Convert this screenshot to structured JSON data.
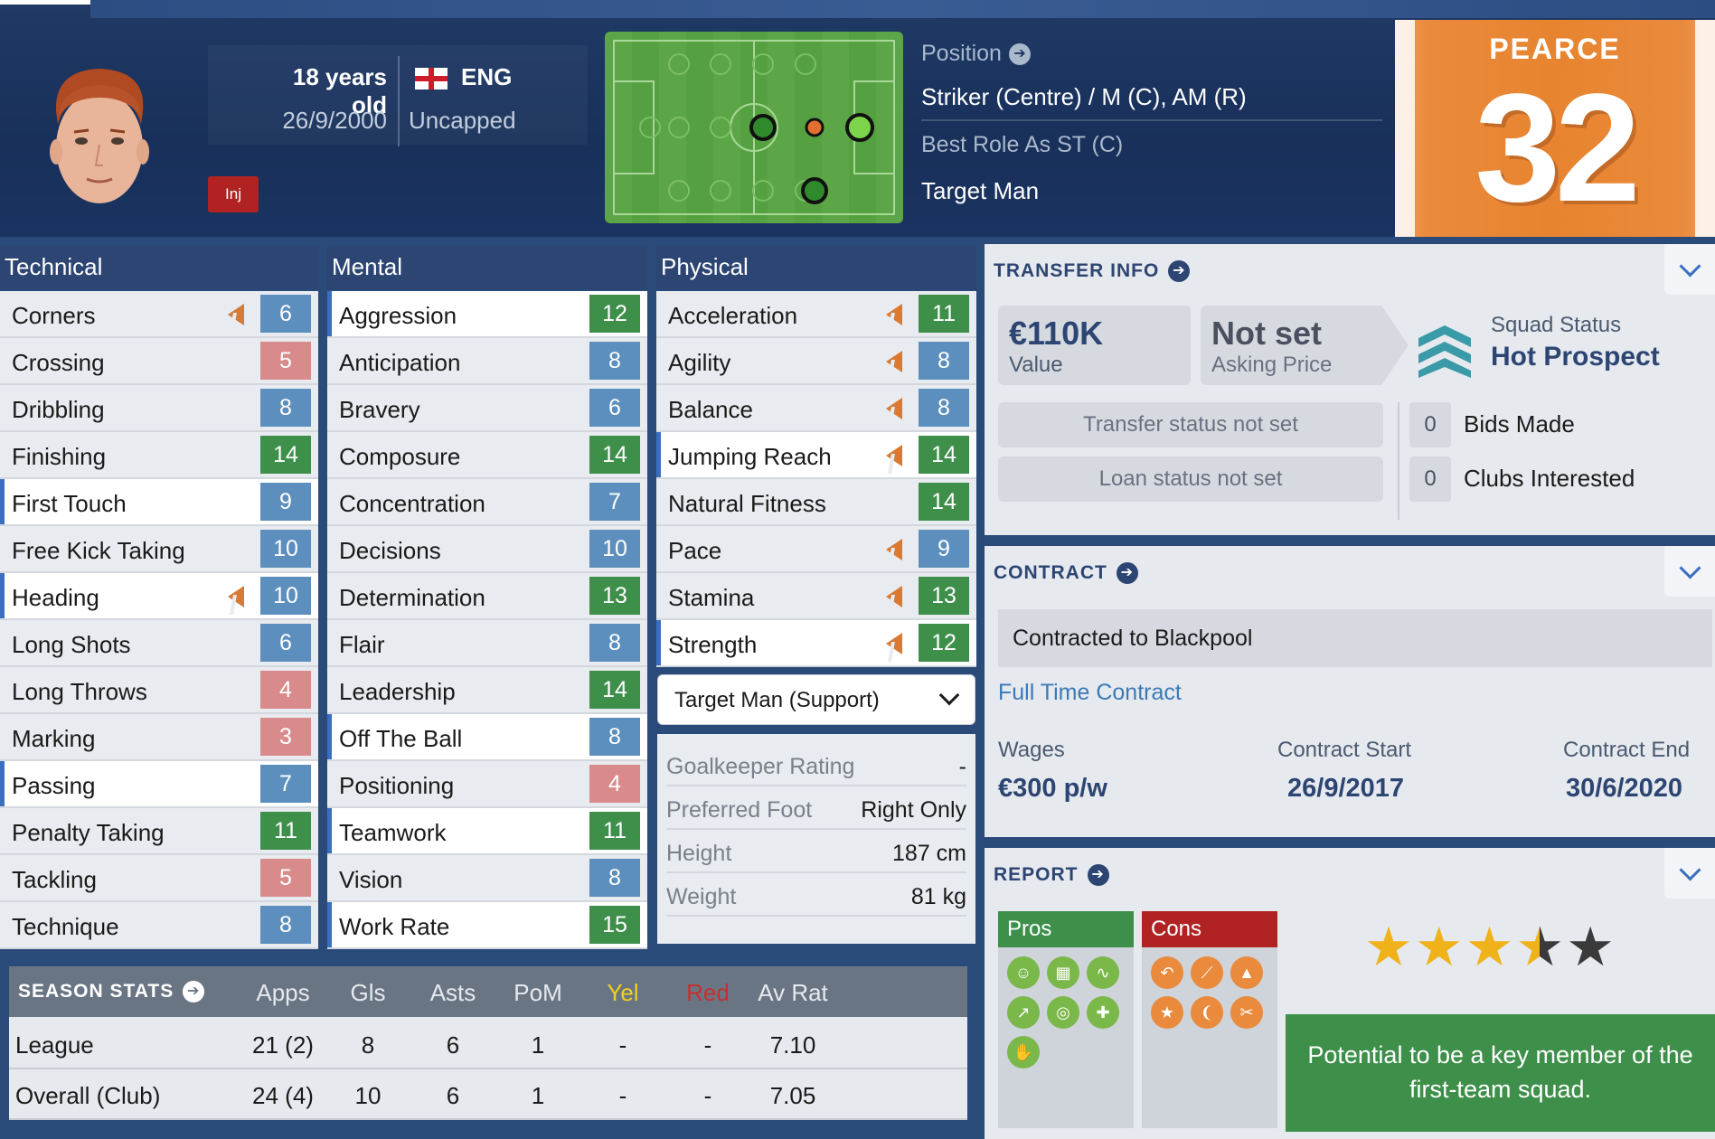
{
  "header": {
    "age": "18 years old",
    "dob": "26/9/2000",
    "nation": "ENG",
    "caps": "Uncapped",
    "injury_badge": "Inj",
    "position_label": "Position",
    "position_value": "Striker (Centre) / M (C), AM (R)",
    "best_role_label": "Best Role As ST (C)",
    "best_role_value": "Target Man",
    "shirt_name": "PEARCE",
    "shirt_number": "32"
  },
  "technical": {
    "title": "Technical",
    "items": [
      {
        "name": "Corners",
        "value": "6",
        "color": "blue",
        "trend": true,
        "hl": false
      },
      {
        "name": "Crossing",
        "value": "5",
        "color": "red",
        "trend": false,
        "hl": false
      },
      {
        "name": "Dribbling",
        "value": "8",
        "color": "blue",
        "trend": false,
        "hl": false
      },
      {
        "name": "Finishing",
        "value": "14",
        "color": "green",
        "trend": false,
        "hl": false
      },
      {
        "name": "First Touch",
        "value": "9",
        "color": "blue",
        "trend": false,
        "hl": true
      },
      {
        "name": "Free Kick Taking",
        "value": "10",
        "color": "blue",
        "trend": false,
        "hl": false
      },
      {
        "name": "Heading",
        "value": "10",
        "color": "blue",
        "trend": true,
        "hl": true
      },
      {
        "name": "Long Shots",
        "value": "6",
        "color": "blue",
        "trend": false,
        "hl": false
      },
      {
        "name": "Long Throws",
        "value": "4",
        "color": "red",
        "trend": false,
        "hl": false
      },
      {
        "name": "Marking",
        "value": "3",
        "color": "red",
        "trend": false,
        "hl": false
      },
      {
        "name": "Passing",
        "value": "7",
        "color": "blue",
        "trend": false,
        "hl": true
      },
      {
        "name": "Penalty Taking",
        "value": "11",
        "color": "green",
        "trend": false,
        "hl": false
      },
      {
        "name": "Tackling",
        "value": "5",
        "color": "red",
        "trend": false,
        "hl": false
      },
      {
        "name": "Technique",
        "value": "8",
        "color": "blue",
        "trend": false,
        "hl": false
      }
    ]
  },
  "mental": {
    "title": "Mental",
    "items": [
      {
        "name": "Aggression",
        "value": "12",
        "color": "green",
        "trend": false,
        "hl": true
      },
      {
        "name": "Anticipation",
        "value": "8",
        "color": "blue",
        "trend": false,
        "hl": false
      },
      {
        "name": "Bravery",
        "value": "6",
        "color": "blue",
        "trend": false,
        "hl": false
      },
      {
        "name": "Composure",
        "value": "14",
        "color": "green",
        "trend": false,
        "hl": false
      },
      {
        "name": "Concentration",
        "value": "7",
        "color": "blue",
        "trend": false,
        "hl": false
      },
      {
        "name": "Decisions",
        "value": "10",
        "color": "blue",
        "trend": false,
        "hl": false
      },
      {
        "name": "Determination",
        "value": "13",
        "color": "green",
        "trend": false,
        "hl": false
      },
      {
        "name": "Flair",
        "value": "8",
        "color": "blue",
        "trend": false,
        "hl": false
      },
      {
        "name": "Leadership",
        "value": "14",
        "color": "green",
        "trend": false,
        "hl": false
      },
      {
        "name": "Off The Ball",
        "value": "8",
        "color": "blue",
        "trend": false,
        "hl": true
      },
      {
        "name": "Positioning",
        "value": "4",
        "color": "red",
        "trend": false,
        "hl": false
      },
      {
        "name": "Teamwork",
        "value": "11",
        "color": "green",
        "trend": false,
        "hl": true
      },
      {
        "name": "Vision",
        "value": "8",
        "color": "blue",
        "trend": false,
        "hl": false
      },
      {
        "name": "Work Rate",
        "value": "15",
        "color": "green",
        "trend": false,
        "hl": true
      }
    ]
  },
  "physical": {
    "title": "Physical",
    "items": [
      {
        "name": "Acceleration",
        "value": "11",
        "color": "green",
        "trend": true,
        "hl": false
      },
      {
        "name": "Agility",
        "value": "8",
        "color": "blue",
        "trend": true,
        "hl": false
      },
      {
        "name": "Balance",
        "value": "8",
        "color": "blue",
        "trend": true,
        "hl": false
      },
      {
        "name": "Jumping Reach",
        "value": "14",
        "color": "green",
        "trend": true,
        "hl": true
      },
      {
        "name": "Natural Fitness",
        "value": "14",
        "color": "green",
        "trend": false,
        "hl": false
      },
      {
        "name": "Pace",
        "value": "9",
        "color": "blue",
        "trend": true,
        "hl": false
      },
      {
        "name": "Stamina",
        "value": "13",
        "color": "green",
        "trend": true,
        "hl": false
      },
      {
        "name": "Strength",
        "value": "12",
        "color": "green",
        "trend": true,
        "hl": true
      }
    ],
    "role_select": "Target Man (Support)",
    "misc": [
      {
        "label": "Goalkeeper Rating",
        "value": "-"
      },
      {
        "label": "Preferred Foot",
        "value": "Right Only"
      },
      {
        "label": "Height",
        "value": "187 cm"
      },
      {
        "label": "Weight",
        "value": "81 kg"
      }
    ]
  },
  "transfer": {
    "title": "TRANSFER INFO",
    "value_main": "€110K",
    "value_sub": "Value",
    "ask_main": "Not set",
    "ask_sub": "Asking Price",
    "squad_label": "Squad Status",
    "squad_value": "Hot Prospect",
    "transfer_status": "Transfer status not set",
    "loan_status": "Loan status not set",
    "bids_count": "0",
    "bids_label": "Bids Made",
    "clubs_count": "0",
    "clubs_label": "Clubs Interested"
  },
  "contract": {
    "title": "CONTRACT",
    "contracted_to": "Contracted to Blackpool",
    "type": "Full Time Contract",
    "wages_label": "Wages",
    "wages_value": "€300 p/w",
    "start_label": "Contract Start",
    "start_value": "26/9/2017",
    "end_label": "Contract End",
    "end_value": "30/6/2020"
  },
  "report": {
    "title": "REPORT",
    "pros_label": "Pros",
    "cons_label": "Cons",
    "stars": 3.5,
    "potential": "Potential to be a key member of the first-team squad."
  },
  "season_stats": {
    "title": "SEASON STATS",
    "columns": [
      "Apps",
      "Gls",
      "Asts",
      "PoM",
      "Yel",
      "Red",
      "Av Rat"
    ],
    "rows": [
      {
        "label": "League",
        "cells": [
          "21 (2)",
          "8",
          "6",
          "1",
          "-",
          "-",
          "7.10"
        ]
      },
      {
        "label": "Overall (Club)",
        "cells": [
          "24 (4)",
          "10",
          "6",
          "1",
          "-",
          "-",
          "7.05"
        ]
      }
    ]
  },
  "colors": {
    "attr_green": "#3d8f4a",
    "attr_blue": "#5c8fbd",
    "attr_red": "#d98b8b",
    "header_navy": "#1e3460",
    "shirt_orange": "#e8842f",
    "yel": "#f0d020",
    "red": "#c43030"
  }
}
